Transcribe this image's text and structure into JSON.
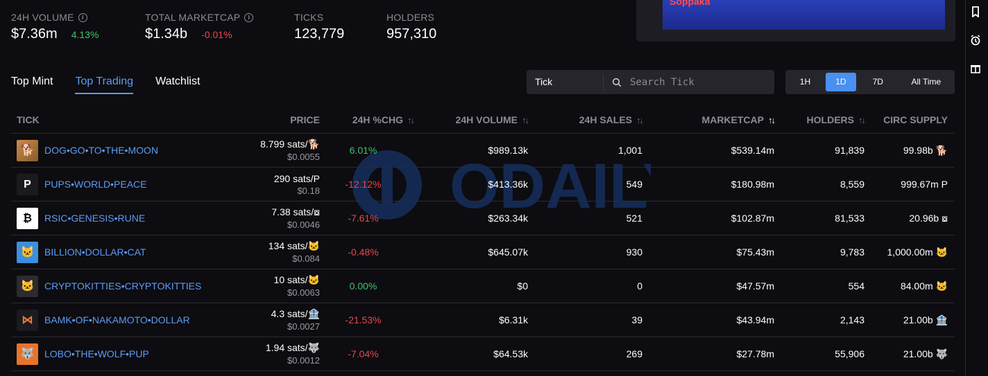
{
  "stats": [
    {
      "label": "24H VOLUME",
      "value": "$7.36m",
      "change": "4.13%",
      "dir": "up",
      "info": true
    },
    {
      "label": "TOTAL MARKETCAP",
      "value": "$1.34b",
      "change": "-0.01%",
      "dir": "down",
      "info": true
    },
    {
      "label": "TICKS",
      "value": "123,779",
      "change": "",
      "dir": "",
      "info": false
    },
    {
      "label": "HOLDERS",
      "value": "957,310",
      "change": "",
      "dir": "",
      "info": false
    }
  ],
  "banner": {
    "text": "Soppaka"
  },
  "tabs": [
    {
      "label": "Top Mint",
      "active": false
    },
    {
      "label": "Top Trading",
      "active": true
    },
    {
      "label": "Watchlist",
      "active": false
    }
  ],
  "search": {
    "select_label": "Tick",
    "placeholder": "Search Tick"
  },
  "time_ranges": [
    {
      "label": "1H",
      "active": false
    },
    {
      "label": "1D",
      "active": true
    },
    {
      "label": "7D",
      "active": false
    },
    {
      "label": "All Time",
      "active": false
    }
  ],
  "table": {
    "headers": {
      "tick": "TICK",
      "price": "PRICE",
      "chg": "24H %CHG",
      "volume": "24H VOLUME",
      "sales": "24H SALES",
      "marketcap": "MARKETCAP",
      "holders": "HOLDERS",
      "supply": "CIRC SUPPLY"
    },
    "rows": [
      {
        "name": "DOG•GO•TO•THE•MOON",
        "logo": "dog",
        "price_sats": "8.799 sats/🐕",
        "price_usd": "$0.0055",
        "chg": "6.01%",
        "dir": "up",
        "volume": "$989.13k",
        "sales": "1,001",
        "marketcap": "$539.14m",
        "holders": "91,839",
        "supply": "99.98b 🐕"
      },
      {
        "name": "PUPS•WORLD•PEACE",
        "logo": "P",
        "price_sats": "290 sats/P",
        "price_usd": "$0.18",
        "chg": "-12.12%",
        "dir": "down",
        "volume": "$413.36k",
        "sales": "549",
        "marketcap": "$180.98m",
        "holders": "8,559",
        "supply": "999.67m P"
      },
      {
        "name": "RSIC•GENESIS•RUNE",
        "logo": "rsic",
        "price_sats": "7.38 sats/⧇",
        "price_usd": "$0.0046",
        "chg": "-7.61%",
        "dir": "down",
        "volume": "$263.34k",
        "sales": "521",
        "marketcap": "$102.87m",
        "holders": "81,533",
        "supply": "20.96b ⧇"
      },
      {
        "name": "BILLION•DOLLAR•CAT",
        "logo": "cat",
        "price_sats": "134 sats/🐱",
        "price_usd": "$0.084",
        "chg": "-0.48%",
        "dir": "down",
        "volume": "$645.07k",
        "sales": "930",
        "marketcap": "$75.43m",
        "holders": "9,783",
        "supply": "1,000.00m 🐱"
      },
      {
        "name": "CRYPTOKITTIES•CRYPTOKITTIES",
        "logo": "kitty",
        "price_sats": "10 sats/🐱",
        "price_usd": "$0.0063",
        "chg": "0.00%",
        "dir": "up",
        "volume": "$0",
        "sales": "0",
        "marketcap": "$47.57m",
        "holders": "554",
        "supply": "84.00m 🐱"
      },
      {
        "name": "BAMK•OF•NAKAMOTO•DOLLAR",
        "logo": "bamk",
        "price_sats": "4.3 sats/🏦",
        "price_usd": "$0.0027",
        "chg": "-21.53%",
        "dir": "down",
        "volume": "$6.31k",
        "sales": "39",
        "marketcap": "$43.94m",
        "holders": "2,143",
        "supply": "21.00b 🏦"
      },
      {
        "name": "LOBO•THE•WOLF•PUP",
        "logo": "lobo",
        "price_sats": "1.94 sats/🐺",
        "price_usd": "$0.0012",
        "chg": "-7.04%",
        "dir": "down",
        "volume": "$64.53k",
        "sales": "269",
        "marketcap": "$27.78m",
        "holders": "55,906",
        "supply": "21.00b 🐺"
      }
    ]
  },
  "watermark": {
    "text": "ODAILY"
  },
  "rightbar_icons": [
    "bookmark-icon",
    "alarm-clock-icon",
    "gift-icon"
  ]
}
